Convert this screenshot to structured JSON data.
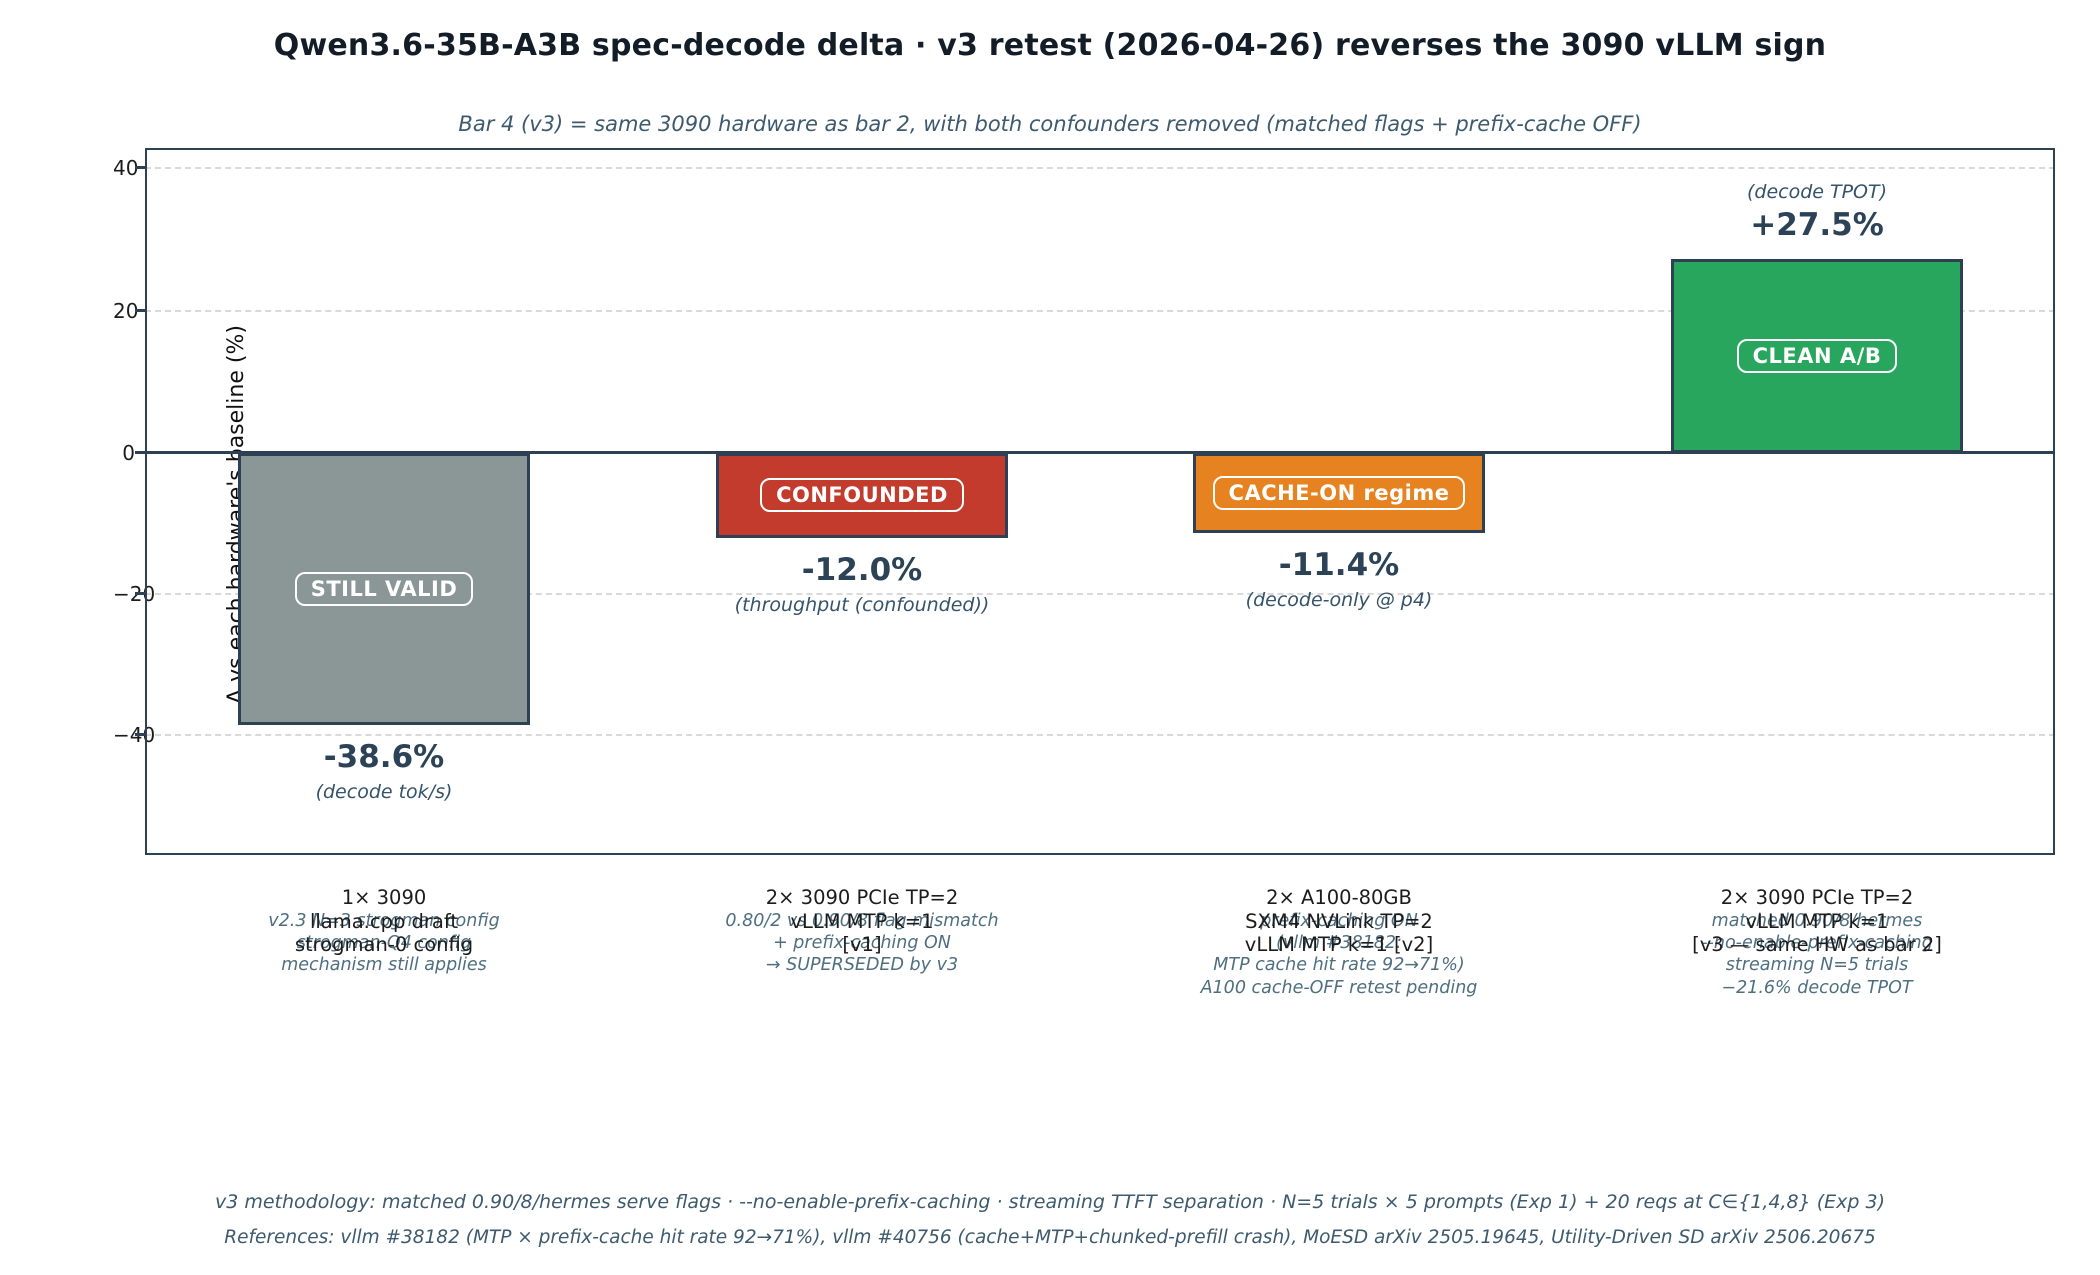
{
  "title": "Qwen3.6-35B-A3B spec-decode delta · v3 retest (2026-04-26) reverses the 3090 vLLM sign",
  "subtitle": "Bar 4 (v3) = same 3090 hardware as bar 2, with both confounders removed (matched flags + prefix-cache OFF)",
  "footnotes": {
    "methodology": "v3 methodology: matched 0.90/8/hermes serve flags · --no-enable-prefix-caching · streaming TTFT separation · N=5 trials × 5 prompts (Exp 1) + 20 reqs at C∈{1,4,8} (Exp 3)",
    "references": "References: vllm #38182 (MTP × prefix-cache hit rate 92→71%), vllm #40756 (cache+MTP+chunked-prefill crash), MoESD arXiv 2505.19645, Utility-Driven SD arXiv 2506.20675"
  },
  "chart_data": {
    "type": "bar",
    "title": "Qwen3.6-35B-A3B spec-decode delta · v3 retest (2026-04-26) reverses the 3090 vLLM sign",
    "xlabel": "",
    "ylabel": "Δ vs each hardware's baseline (%)",
    "ylim": [
      -57,
      44
    ],
    "yticks": [
      40,
      20,
      0,
      -20,
      -40
    ],
    "ytick_labels": [
      "40",
      "20",
      "0",
      "−20",
      "−40"
    ],
    "grid": "horizontal dashed",
    "zero_line": true,
    "legend": "none",
    "bars": [
      {
        "value": -38.6,
        "value_label": "-38.6%",
        "caption": "(decode tok/s)",
        "badge": "STILL VALID",
        "color": "#8b9696",
        "tick_lines": [
          "1× 3090",
          "llama.cpp draft",
          "strogman-0 config"
        ],
        "annotation_lines": [
          "v2.3 N=3 strogman config",
          "strogman-Q4 config",
          "mechanism still applies"
        ]
      },
      {
        "value": -12.0,
        "value_label": "-12.0%",
        "caption": "(throughput (confounded))",
        "badge": "CONFOUNDED",
        "color": "#c23b2c",
        "tick_lines": [
          "2× 3090 PCIe TP=2",
          "vLLM MTP k=1",
          "[v1]"
        ],
        "annotation_lines": [
          "0.80/2 vs 0.90/8 flag mismatch",
          "+ prefix-caching ON",
          "→ SUPERSEDED by v3"
        ]
      },
      {
        "value": -11.4,
        "value_label": "-11.4%",
        "caption": "(decode-only @ p4)",
        "badge": "CACHE-ON regime",
        "color": "#e6821f",
        "tick_lines": [
          "2× A100-80GB",
          "SXM4 NVLink TP=2",
          "vLLM MTP k=1 [v2]"
        ],
        "annotation_lines": [
          "prefix-caching ON",
          "(vllm #38182:",
          "MTP cache hit rate 92→71%)",
          "A100 cache-OFF retest pending"
        ]
      },
      {
        "value": 27.5,
        "value_label": "+27.5%",
        "caption": "(decode TPOT)",
        "badge": "CLEAN A/B",
        "color": "#29a65e",
        "tick_lines": [
          "2× 3090 PCIe TP=2",
          "vLLM MTP k=1",
          "[v3 — same HW as bar 2]"
        ],
        "annotation_lines": [
          "matched 0.90/8/hermes",
          "--no-enable-prefix-caching",
          "streaming N=5 trials",
          "−21.6% decode TPOT"
        ]
      }
    ]
  }
}
